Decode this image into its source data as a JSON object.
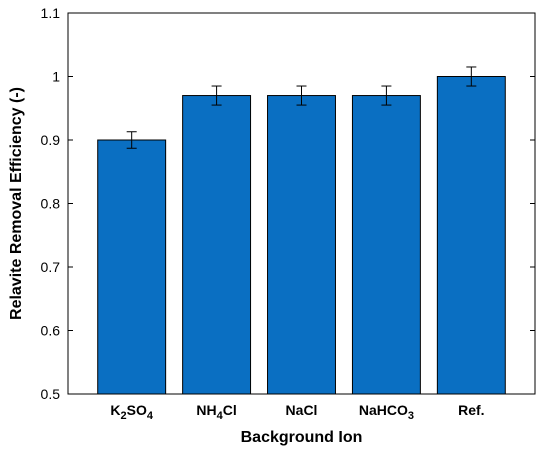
{
  "chart_data": {
    "type": "bar",
    "title": "",
    "xlabel": "Background Ion",
    "ylabel": "Relavite Removal Efficiency (-)",
    "categories": [
      {
        "main": "K",
        "sub": "2",
        "main2": "SO",
        "sub2": "4"
      },
      {
        "main": "NH",
        "sub": "4",
        "main2": "Cl",
        "sub2": ""
      },
      {
        "main": "NaCl",
        "sub": "",
        "main2": "",
        "sub2": ""
      },
      {
        "main": "NaHCO",
        "sub": "3",
        "main2": "",
        "sub2": ""
      },
      {
        "main": "Ref.",
        "sub": "",
        "main2": "",
        "sub2": ""
      }
    ],
    "values": [
      0.9,
      0.97,
      0.97,
      0.97,
      1.0
    ],
    "error": [
      0.013,
      0.015,
      0.015,
      0.015,
      0.015
    ],
    "ylim": [
      0.5,
      1.1
    ],
    "yticks": [
      "0.5",
      "0.6",
      "0.7",
      "0.8",
      "0.9",
      "1",
      "1.1"
    ],
    "bar_color": "#0a6fc2",
    "grid": false
  }
}
